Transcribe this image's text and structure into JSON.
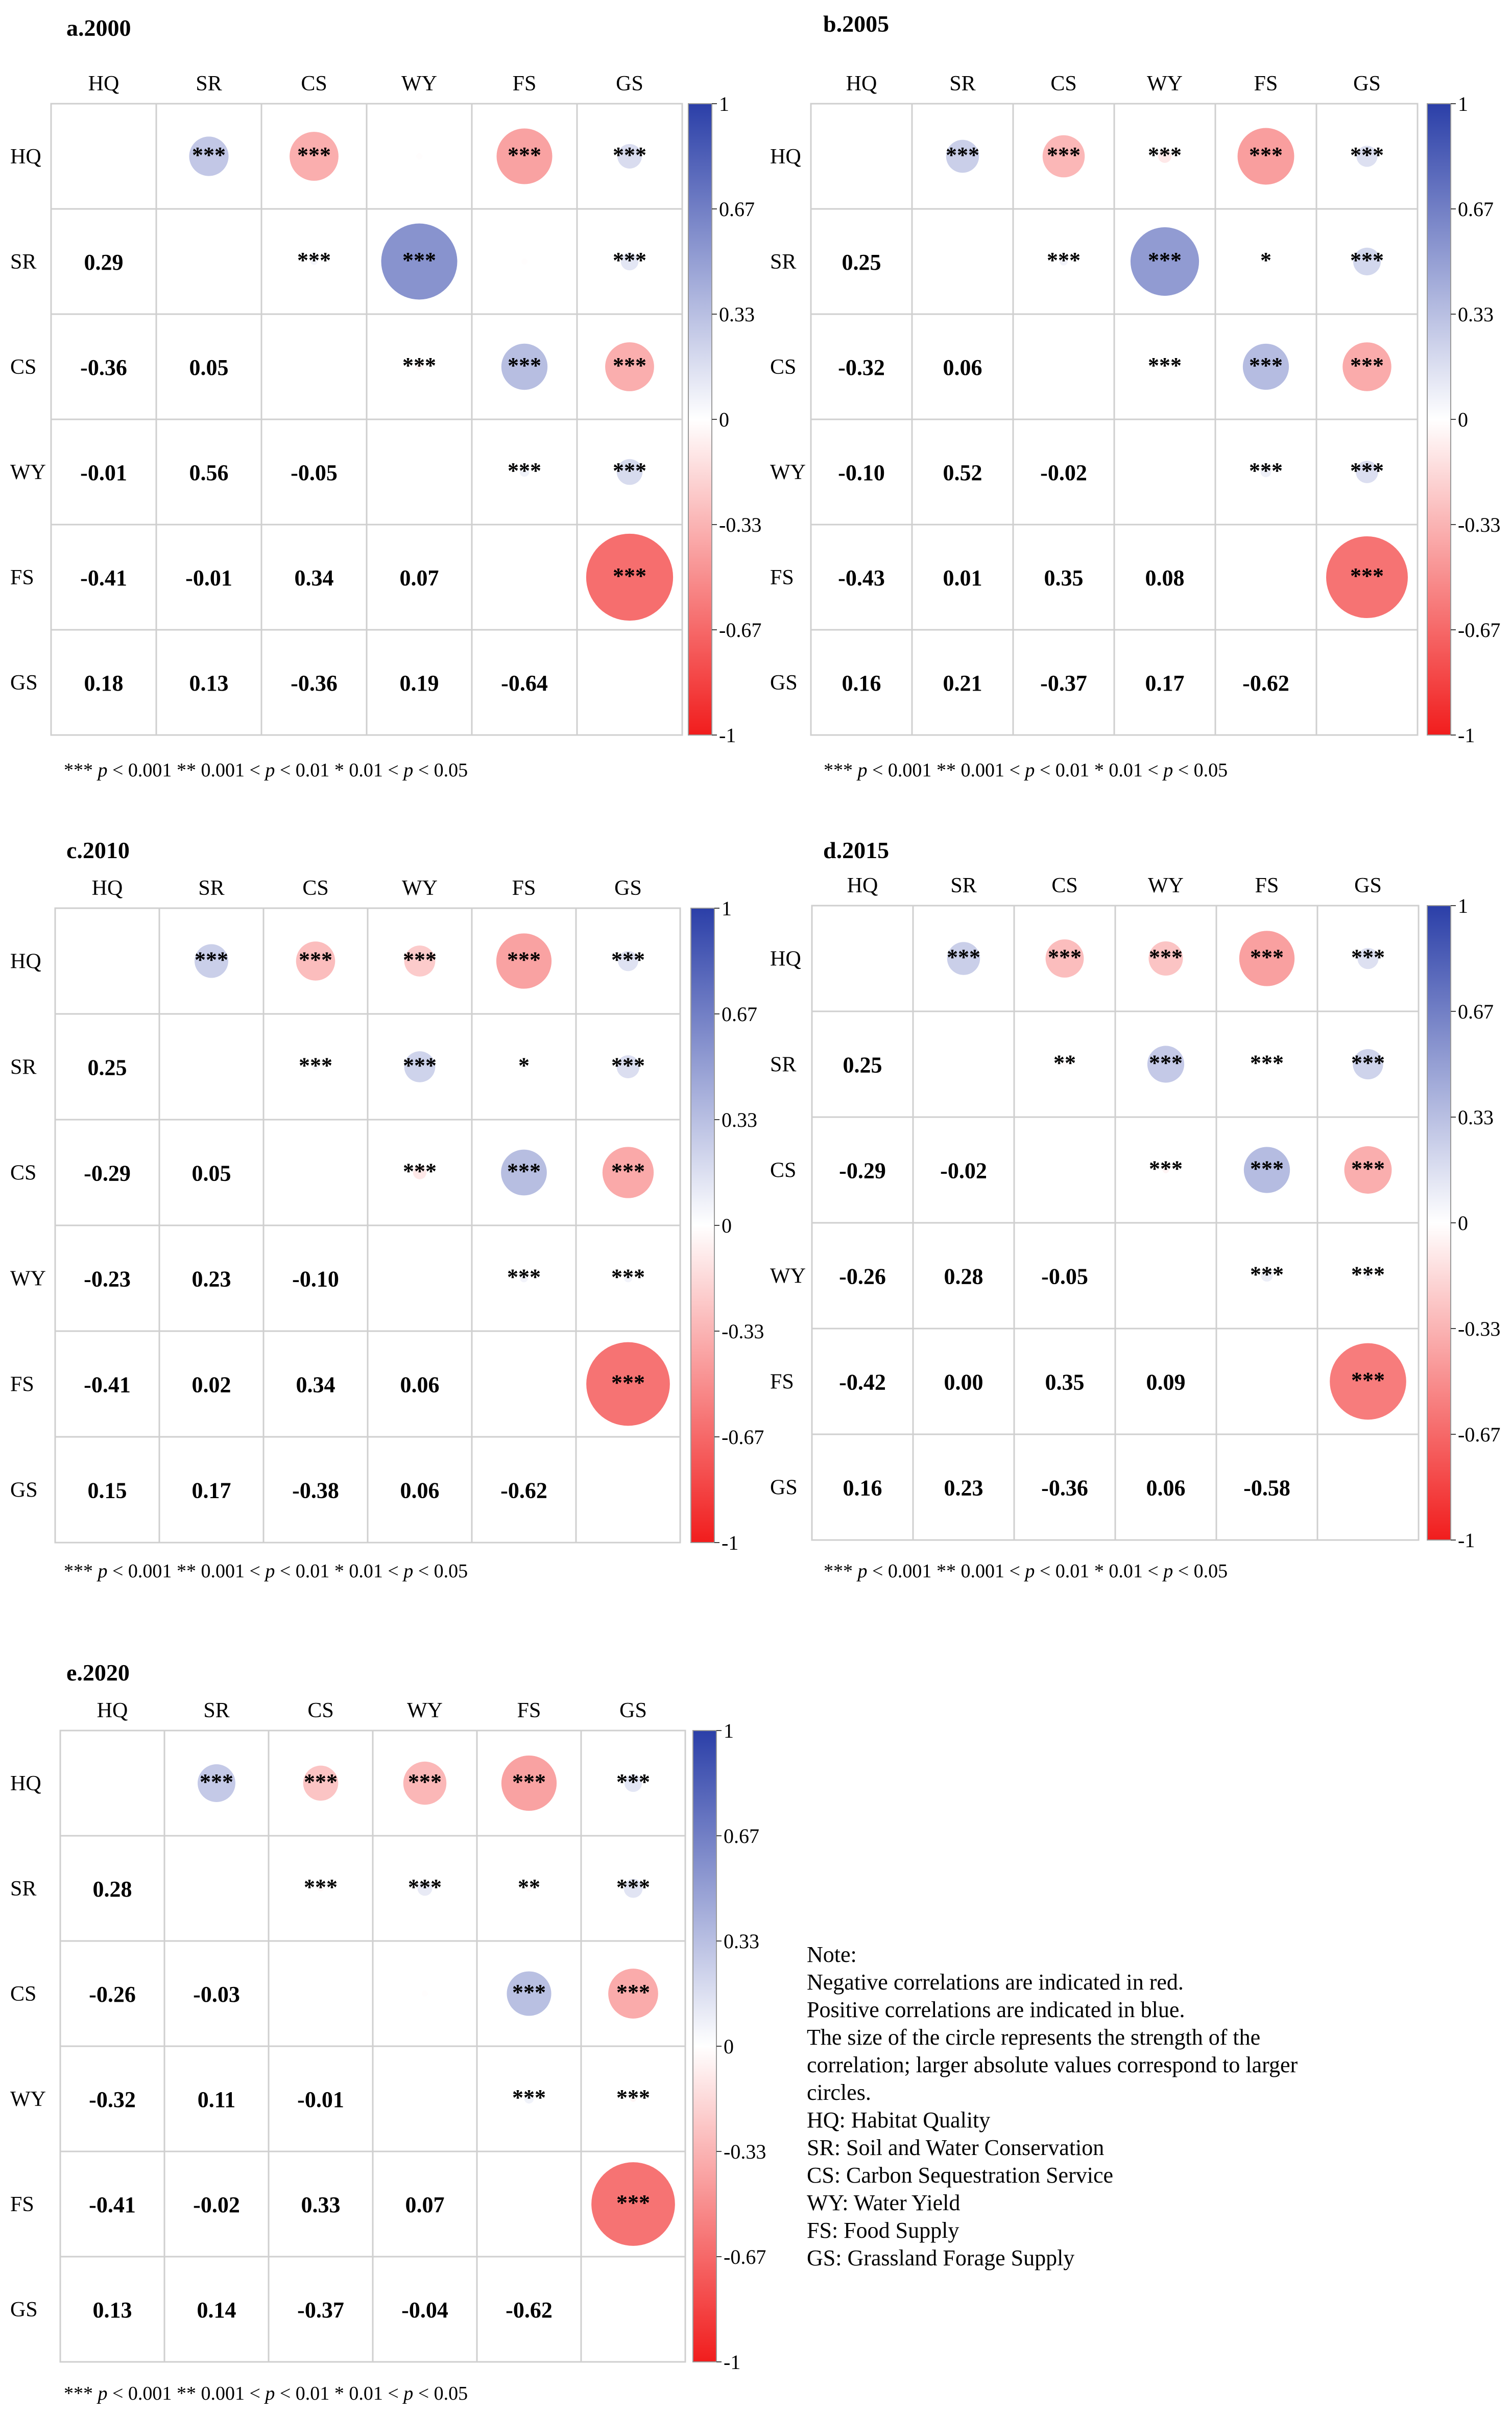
{
  "labels": [
    "HQ",
    "SR",
    "CS",
    "WY",
    "FS",
    "GS"
  ],
  "colorbar": {
    "ticks": [
      "1",
      "0.67",
      "0.33",
      "0",
      "-0.33",
      "-0.67",
      "-1"
    ],
    "colors": {
      "positive": "#2B3FA8",
      "neutral": "#FFFFFF",
      "negative": "#F11D1D"
    }
  },
  "footnote": [
    "***",
    "p",
    "< 0.001",
    "**",
    "0.001 <",
    "p",
    "< 0.01",
    "*",
    "0.01 <",
    "p",
    "< 0.05"
  ],
  "chart_data": [
    {
      "type": "heatmap",
      "title": "a.2000",
      "variables": [
        "HQ",
        "SR",
        "CS",
        "WY",
        "FS",
        "GS"
      ],
      "lower_values": [
        [
          0.29
        ],
        [
          -0.36,
          0.05
        ],
        [
          -0.01,
          0.56,
          -0.05
        ],
        [
          -0.41,
          -0.01,
          0.34,
          0.07
        ],
        [
          0.18,
          0.13,
          -0.36,
          0.19,
          -0.64
        ]
      ],
      "lower_labels": [
        [
          "0.29"
        ],
        [
          "-0.36",
          "0.05"
        ],
        [
          "-0.01",
          "0.56",
          "-0.05"
        ],
        [
          "-0.41",
          "-0.01",
          "0.34",
          "0.07"
        ],
        [
          "0.18",
          "0.13",
          "-0.36",
          "0.19",
          "-0.64"
        ]
      ],
      "upper_stars": [
        [
          "***",
          "***",
          "",
          "***",
          "***"
        ],
        [
          "***",
          "***",
          "",
          "***"
        ],
        [
          "***",
          "***",
          "***"
        ],
        [
          "***",
          "***"
        ],
        [
          "***"
        ]
      ],
      "legend": "colorbar-right",
      "vrange": [
        -1,
        1
      ]
    },
    {
      "type": "heatmap",
      "title": "b.2005",
      "variables": [
        "HQ",
        "SR",
        "CS",
        "WY",
        "FS",
        "GS"
      ],
      "lower_values": [
        [
          0.25
        ],
        [
          -0.32,
          0.06
        ],
        [
          -0.1,
          0.52,
          -0.02
        ],
        [
          -0.43,
          0.01,
          0.35,
          0.08
        ],
        [
          0.16,
          0.21,
          -0.37,
          0.17,
          -0.62
        ]
      ],
      "lower_labels": [
        [
          "0.25"
        ],
        [
          "-0.32",
          "0.06"
        ],
        [
          "-0.10",
          "0.52",
          "-0.02"
        ],
        [
          "-0.43",
          "0.01",
          "0.35",
          "0.08"
        ],
        [
          "0.16",
          "0.21",
          "-0.37",
          "0.17",
          "-0.62"
        ]
      ],
      "upper_stars": [
        [
          "***",
          "***",
          "***",
          "***",
          "***"
        ],
        [
          "***",
          "***",
          "*",
          "***"
        ],
        [
          "***",
          "***",
          "***"
        ],
        [
          "***",
          "***"
        ],
        [
          "***"
        ]
      ],
      "legend": "colorbar-right",
      "vrange": [
        -1,
        1
      ]
    },
    {
      "type": "heatmap",
      "title": "c.2010",
      "variables": [
        "HQ",
        "SR",
        "CS",
        "WY",
        "FS",
        "GS"
      ],
      "lower_values": [
        [
          0.25
        ],
        [
          -0.29,
          0.05
        ],
        [
          -0.23,
          0.23,
          -0.1
        ],
        [
          -0.41,
          0.02,
          0.34,
          0.06
        ],
        [
          0.15,
          0.17,
          -0.38,
          0.06,
          -0.62
        ]
      ],
      "lower_labels": [
        [
          "0.25"
        ],
        [
          "-0.29",
          "0.05"
        ],
        [
          "-0.23",
          "0.23",
          "-0.10"
        ],
        [
          "-0.41",
          "0.02",
          "0.34",
          "0.06"
        ],
        [
          "0.15",
          "0.17",
          "-0.38",
          "0.06",
          "-0.62"
        ]
      ],
      "upper_stars": [
        [
          "***",
          "***",
          "***",
          "***",
          "***"
        ],
        [
          "***",
          "***",
          "*",
          "***"
        ],
        [
          "***",
          "***",
          "***"
        ],
        [
          "***",
          "***"
        ],
        [
          "***"
        ]
      ],
      "legend": "colorbar-right",
      "vrange": [
        -1,
        1
      ]
    },
    {
      "type": "heatmap",
      "title": "d.2015",
      "variables": [
        "HQ",
        "SR",
        "CS",
        "WY",
        "FS",
        "GS"
      ],
      "lower_values": [
        [
          0.25
        ],
        [
          -0.29,
          -0.02
        ],
        [
          -0.26,
          0.28,
          -0.05
        ],
        [
          -0.42,
          0.0,
          0.35,
          0.09
        ],
        [
          0.16,
          0.23,
          -0.36,
          0.06,
          -0.58
        ]
      ],
      "lower_labels": [
        [
          "0.25"
        ],
        [
          "-0.29",
          "-0.02"
        ],
        [
          "-0.26",
          "0.28",
          "-0.05"
        ],
        [
          "-0.42",
          "0.00",
          "0.35",
          "0.09"
        ],
        [
          "0.16",
          "0.23",
          "-0.36",
          "0.06",
          "-0.58"
        ]
      ],
      "upper_stars": [
        [
          "***",
          "***",
          "***",
          "***",
          "***"
        ],
        [
          "**",
          "***",
          "***",
          "***"
        ],
        [
          "***",
          "***",
          "***"
        ],
        [
          "***",
          "***"
        ],
        [
          "***"
        ]
      ],
      "legend": "colorbar-right",
      "vrange": [
        -1,
        1
      ]
    },
    {
      "type": "heatmap",
      "title": "e.2020",
      "variables": [
        "HQ",
        "SR",
        "CS",
        "WY",
        "FS",
        "GS"
      ],
      "lower_values": [
        [
          0.28
        ],
        [
          -0.26,
          -0.03
        ],
        [
          -0.32,
          0.11,
          -0.01
        ],
        [
          -0.41,
          -0.02,
          0.33,
          0.07
        ],
        [
          0.13,
          0.14,
          -0.37,
          -0.04,
          -0.62
        ]
      ],
      "lower_labels": [
        [
          "0.28"
        ],
        [
          "-0.26",
          "-0.03"
        ],
        [
          "-0.32",
          "0.11",
          "-0.01"
        ],
        [
          "-0.41",
          "-0.02",
          "0.33",
          "0.07"
        ],
        [
          "0.13",
          "0.14",
          "-0.37",
          "-0.04",
          "-0.62"
        ]
      ],
      "upper_stars": [
        [
          "***",
          "***",
          "***",
          "***",
          "***"
        ],
        [
          "***",
          "***",
          "**",
          "***"
        ],
        [
          "",
          "***",
          "***"
        ],
        [
          "***",
          "***"
        ],
        [
          "***"
        ]
      ],
      "legend": "colorbar-right",
      "vrange": [
        -1,
        1
      ]
    }
  ],
  "note": {
    "title": "Note:",
    "lines": [
      "Negative correlations are indicated in red.",
      "Positive correlations are indicated in blue.",
      "The size of the circle represents the strength of the",
      "correlation; larger absolute values correspond to larger",
      "circles.",
      "HQ: Habitat Quality",
      "SR: Soil and Water Conservation",
      "CS: Carbon Sequestration Service",
      "WY: Water Yield",
      "FS: Food Supply",
      "GS: Grassland Forage Supply"
    ]
  }
}
